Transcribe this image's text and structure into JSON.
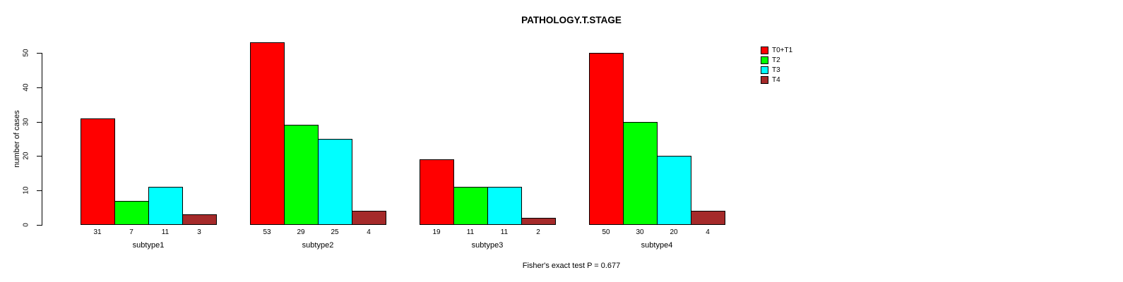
{
  "title": "PATHOLOGY.T.STAGE",
  "chart_data": {
    "type": "bar",
    "title": "PATHOLOGY.T.STAGE",
    "ylabel": "number of cases",
    "xlabel": "",
    "categories": [
      "subtype1",
      "subtype2",
      "subtype3",
      "subtype4"
    ],
    "series": [
      {
        "name": "T0+T1",
        "color": "#FF0000",
        "values": [
          31,
          53,
          19,
          50
        ]
      },
      {
        "name": "T2",
        "color": "#00FF00",
        "values": [
          7,
          29,
          11,
          30
        ]
      },
      {
        "name": "T3",
        "color": "#00FFFF",
        "values": [
          11,
          25,
          11,
          20
        ]
      },
      {
        "name": "T4",
        "color": "#A52A2A",
        "values": [
          3,
          4,
          2,
          4
        ]
      }
    ],
    "bar_value_labels": [
      [
        31,
        7,
        11,
        3
      ],
      [
        53,
        29,
        25,
        4
      ],
      [
        19,
        11,
        11,
        2
      ],
      [
        50,
        30,
        20,
        4
      ]
    ],
    "yticks": [
      0,
      10,
      20,
      30,
      40,
      50
    ],
    "ylim": [
      0,
      53
    ],
    "grid": false,
    "legend_position": "top-right",
    "annotation": "Fisher's exact test P = 0.677"
  }
}
